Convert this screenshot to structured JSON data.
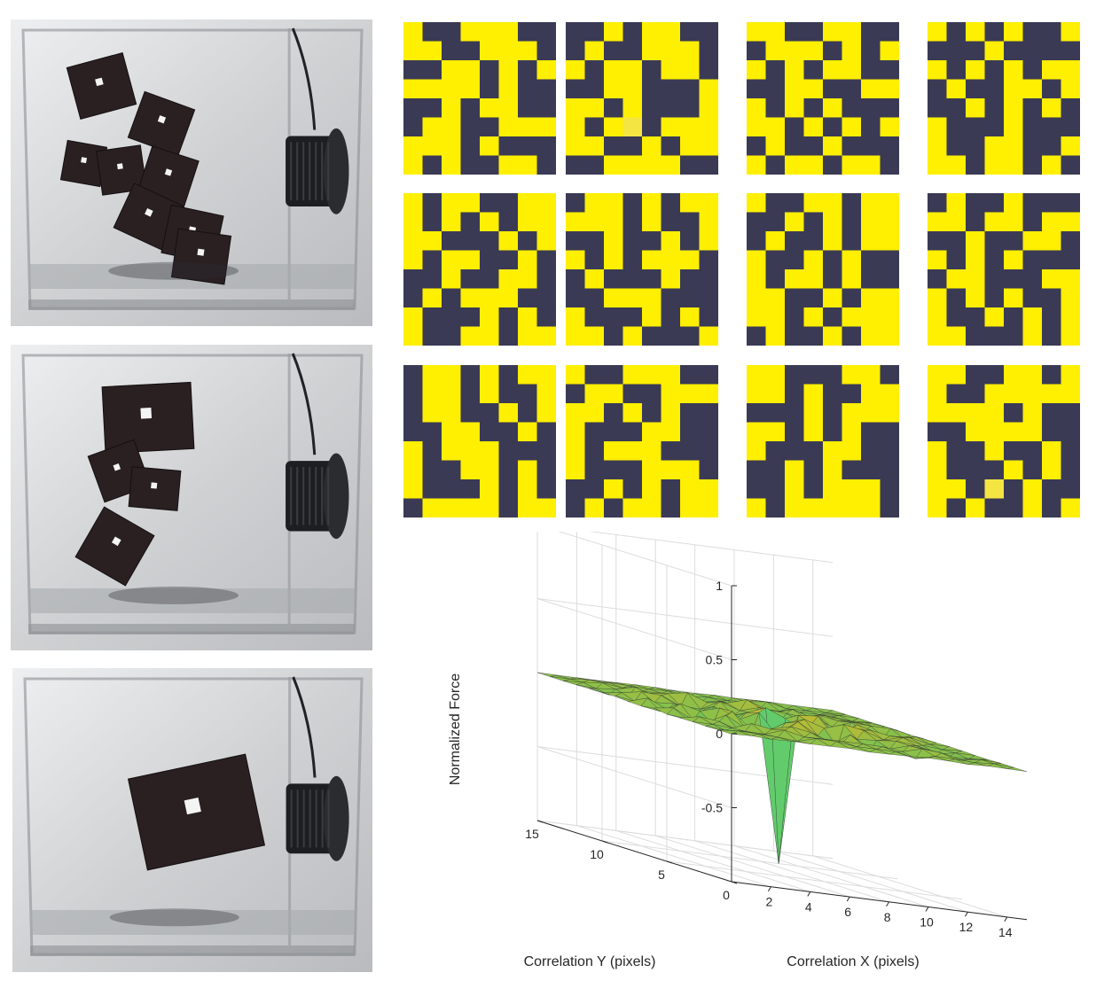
{
  "colors": {
    "yellow": "#ffef00",
    "dark": "#3a3a55",
    "pale_yellow": "#f5e542",
    "cube": "#2a2022",
    "glass": "#d4d6d8",
    "motor": "#1c1e22"
  },
  "photos": [
    {
      "name": "photo-scattered-cubes"
    },
    {
      "name": "photo-partially-assembled-cubes"
    },
    {
      "name": "photo-assembled-cube"
    }
  ],
  "patterns": [
    {
      "rows": [
        "10011100",
        "11001110",
        "00110101",
        "11110100",
        "00101100",
        "01100111",
        "11101000",
        "10100110"
      ],
      "pale": null
    },
    {
      "rows": [
        "00101100",
        "01001110",
        "10110110",
        "00110001",
        "11010001",
        "10100111",
        "11001011",
        "00111100"
      ],
      "pale": [
        5,
        3
      ]
    },
    {
      "rows": [
        "11001100",
        "01110101",
        "10101100",
        "00110011",
        "10101000",
        "11010101",
        "01001000",
        "10110110"
      ],
      "pale": null
    },
    {
      "rows": [
        "10101001",
        "00010000",
        "10101011",
        "01001101",
        "00101010",
        "10001000",
        "10011001",
        "11011010"
      ],
      "pale": null
    },
    {
      "rows": [
        "10110011",
        "10101011",
        "11000101",
        "10110010",
        "00100110",
        "01011100",
        "10001010",
        "10011011"
      ],
      "pale": null
    },
    {
      "rows": [
        "01101011",
        "11101001",
        "00100101",
        "10101110",
        "01000100",
        "00111000",
        "10001010",
        "11010001"
      ],
      "pale": null
    },
    {
      "rows": [
        "10011011",
        "00101011",
        "01001011",
        "10010100",
        "10110100",
        "11001011",
        "11010111",
        "01001011"
      ],
      "pale": null
    },
    {
      "rows": [
        "01001000",
        "11011011",
        "00100110",
        "10101000",
        "01100011",
        "10101001",
        "10010101",
        "11000101"
      ],
      "pale": null
    },
    {
      "rows": [
        "01101011",
        "01101001",
        "01100101",
        "00110010",
        "10111000",
        "10011010",
        "10001010",
        "01111011"
      ],
      "pale": null
    },
    {
      "rows": [
        "10011100",
        "01100111",
        "11010100",
        "10001100",
        "10111000",
        "10001110",
        "00101011",
        "01011011"
      ],
      "pale": null
    },
    {
      "rows": [
        "11000110",
        "11010011",
        "00010111",
        "11010100",
        "10001100",
        "00101000",
        "00101110",
        "10111110"
      ],
      "pale": null
    },
    {
      "rows": [
        "11001101",
        "10011111",
        "11110100",
        "00111100",
        "10010010",
        "10001010",
        "11000100",
        "10100101"
      ],
      "pale": [
        6,
        3
      ]
    }
  ],
  "chart_data": {
    "type": "surface",
    "xlabel": "Correlation X (pixels)",
    "ylabel": "Correlation Y (pixels)",
    "zlabel": "Normalized Force",
    "xlim": [
      0,
      15
    ],
    "ylim": [
      0,
      15
    ],
    "zlim": [
      -1,
      1
    ],
    "xticks": [
      "2",
      "4",
      "6",
      "8",
      "10",
      "12",
      "14"
    ],
    "yticks": [
      "0",
      "5",
      "10",
      "15"
    ],
    "zticks": [
      "1",
      "0.5",
      "0",
      "-0.5"
    ],
    "minimum": {
      "x": 7,
      "y": 7,
      "z": -0.95
    },
    "grid": true
  }
}
